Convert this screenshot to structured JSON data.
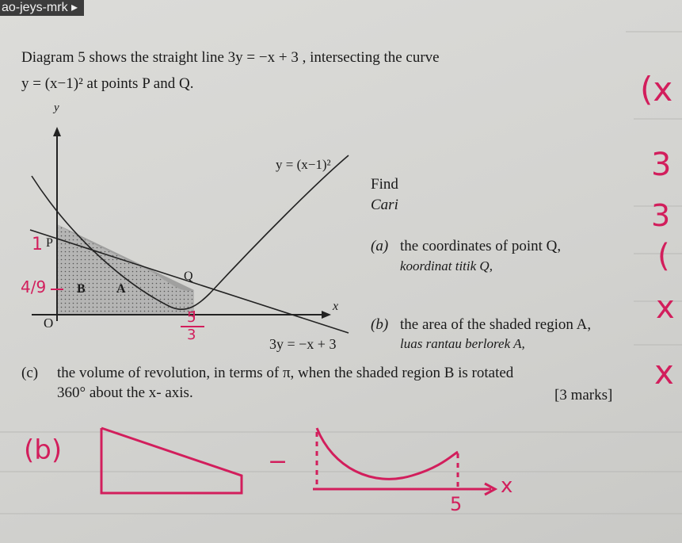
{
  "tab": {
    "label": "ao-jeys-mrk ▸"
  },
  "intro": {
    "line1": "Diagram 5 shows the straight line 3y = −x + 3 , intersecting the curve",
    "line2": "y = (x−1)² at points P and Q."
  },
  "diagram": {
    "y_axis": "y",
    "x_axis": "x",
    "origin": "O",
    "point_p": "P",
    "point_q": "Q",
    "region_a": "A",
    "region_b": "B",
    "curve_label": "y = (x−1)²",
    "line_label": "3y = −x + 3",
    "handwritten": {
      "one": "1",
      "quarter": "4/9",
      "x_mark_num": "5",
      "x_mark_den": "3"
    }
  },
  "questions": {
    "find": "Find",
    "cari": "Cari",
    "a": {
      "label": "(a)",
      "text": "the coordinates of point Q,",
      "translation": "koordinat titik Q,"
    },
    "b": {
      "label": "(b)",
      "text": "the area of the shaded region A,",
      "translation": "luas rantau berlorek A,"
    },
    "c": {
      "label": "(c)",
      "text": "the volume of revolution, in terms of π, when the shaded region B is rotated",
      "text2": "360° about the x- axis.",
      "marks": "[3 marks]"
    }
  },
  "working": {
    "part": "(b)",
    "minus": "−",
    "axis": "x",
    "value": "5"
  },
  "margin_notes": [
    "(x",
    "3",
    "3",
    "(",
    "x",
    "x"
  ]
}
